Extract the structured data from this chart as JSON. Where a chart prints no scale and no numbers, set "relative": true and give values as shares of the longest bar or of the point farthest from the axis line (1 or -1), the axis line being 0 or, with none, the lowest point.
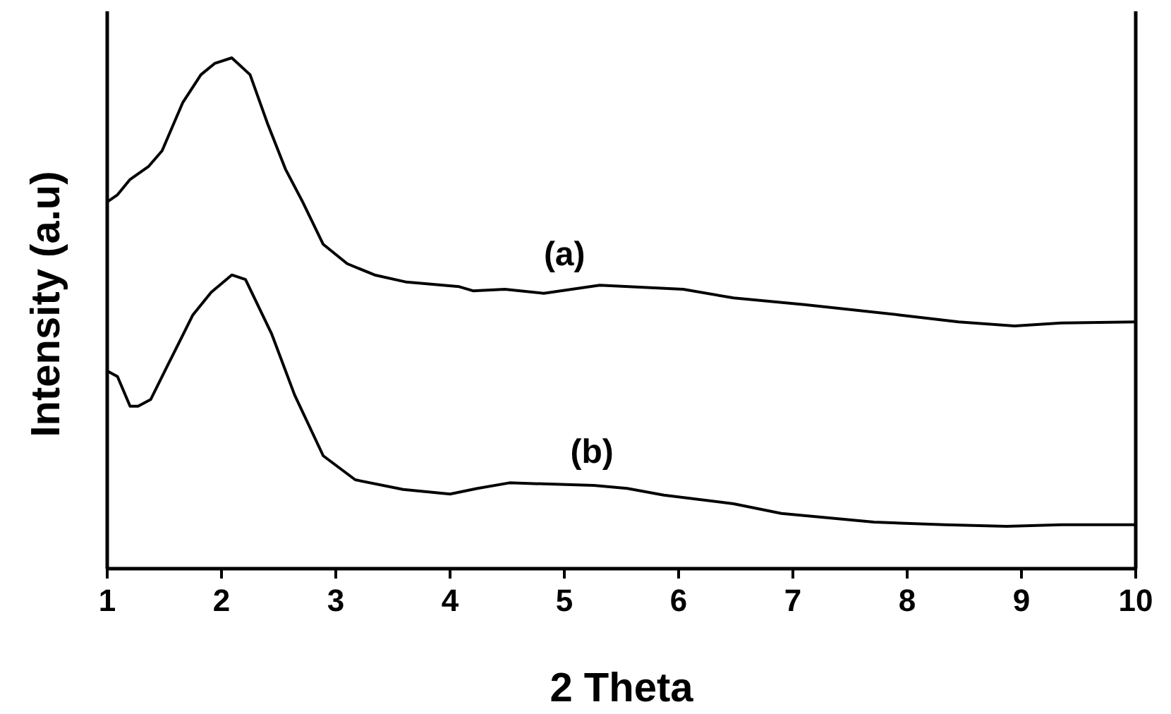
{
  "chart_data": {
    "type": "line",
    "relative": true,
    "xlabel": "2 Theta",
    "ylabel": "Intensity (a.u)",
    "xlim": [
      1,
      10
    ],
    "xticks": [
      1,
      2,
      3,
      4,
      5,
      6,
      7,
      8,
      9,
      10
    ],
    "tick_labels": "x",
    "grid": false,
    "marker": "none",
    "line_style": "solid",
    "series": [
      {
        "name": "(a)",
        "color": "#000000",
        "x": [
          1,
          1.09,
          1.2,
          1.36,
          1.48,
          1.66,
          1.82,
          1.94,
          2.09,
          2.25,
          2.4,
          2.56,
          2.71,
          2.89,
          3.1,
          3.34,
          3.62,
          4.08,
          4.2,
          4.48,
          4.82,
          5.31,
          6.04,
          6.48,
          7.1,
          7.92,
          8.45,
          8.94,
          9.35,
          10
        ],
        "values": [
          0.718,
          0.732,
          0.762,
          0.787,
          0.818,
          0.912,
          0.967,
          0.989,
          1,
          0.967,
          0.873,
          0.782,
          0.718,
          0.635,
          0.597,
          0.575,
          0.561,
          0.552,
          0.544,
          0.547,
          0.539,
          0.555,
          0.547,
          0.53,
          0.517,
          0.497,
          0.483,
          0.475,
          0.481,
          0.483
        ]
      },
      {
        "name": "(b)",
        "color": "#000000",
        "x": [
          1,
          1.09,
          1.2,
          1.27,
          1.38,
          1.54,
          1.75,
          1.91,
          2.09,
          2.21,
          2.44,
          2.64,
          2.89,
          3.17,
          3.59,
          4,
          4.24,
          4.52,
          5.26,
          5.55,
          5.87,
          6.48,
          6.9,
          7.71,
          8.33,
          8.87,
          9.35,
          10
        ],
        "values": [
          0.387,
          0.376,
          0.318,
          0.318,
          0.331,
          0.403,
          0.497,
          0.541,
          0.575,
          0.566,
          0.459,
          0.34,
          0.221,
          0.174,
          0.155,
          0.146,
          0.157,
          0.168,
          0.163,
          0.157,
          0.144,
          0.127,
          0.108,
          0.091,
          0.086,
          0.083,
          0.086,
          0.086
        ]
      }
    ]
  }
}
